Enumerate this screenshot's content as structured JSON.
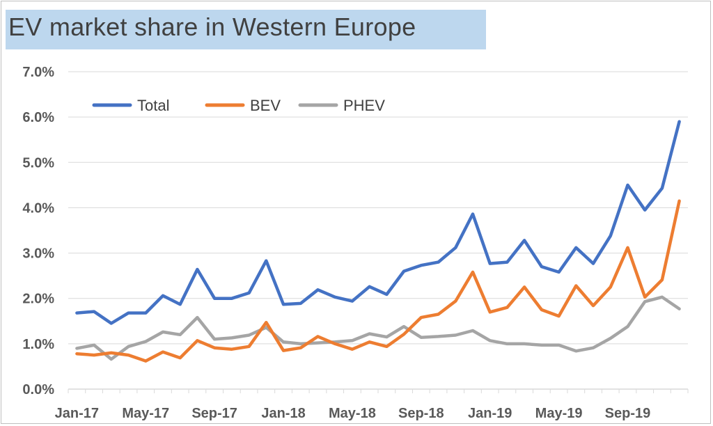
{
  "title": "EV market share in Western Europe",
  "colors": {
    "Total": "#4472c4",
    "BEV": "#ed7d31",
    "PHEV": "#a5a5a5"
  },
  "chart_data": {
    "type": "line",
    "title": "EV market share in Western Europe",
    "xlabel": "",
    "ylabel": "",
    "ylim": [
      0,
      0.07
    ],
    "y_ticks": [
      "0.0%",
      "1.0%",
      "2.0%",
      "3.0%",
      "4.0%",
      "5.0%",
      "6.0%",
      "7.0%"
    ],
    "x_ticks": [
      "Jan-17",
      "May-17",
      "Sep-17",
      "Jan-18",
      "May-18",
      "Sep-18",
      "Jan-19",
      "May-19",
      "Sep-19"
    ],
    "x": [
      "Jan-17",
      "Feb-17",
      "Mar-17",
      "Apr-17",
      "May-17",
      "Jun-17",
      "Jul-17",
      "Aug-17",
      "Sep-17",
      "Oct-17",
      "Nov-17",
      "Dec-17",
      "Jan-18",
      "Feb-18",
      "Mar-18",
      "Apr-18",
      "May-18",
      "Jun-18",
      "Jul-18",
      "Aug-18",
      "Sep-18",
      "Oct-18",
      "Nov-18",
      "Dec-18",
      "Jan-19",
      "Feb-19",
      "Mar-19",
      "Apr-19",
      "May-19",
      "Jun-19",
      "Jul-19",
      "Aug-19",
      "Sep-19",
      "Oct-19",
      "Nov-19",
      "Dec-19"
    ],
    "legend_position": "top-left",
    "grid": true,
    "series": [
      {
        "name": "Total",
        "values": [
          1.68,
          1.71,
          1.45,
          1.68,
          1.68,
          2.06,
          1.87,
          2.64,
          2.0,
          2.0,
          2.12,
          2.83,
          1.87,
          1.89,
          2.19,
          2.03,
          1.94,
          2.26,
          2.09,
          2.6,
          2.73,
          2.8,
          3.12,
          3.86,
          2.77,
          2.8,
          3.28,
          2.7,
          2.58,
          3.12,
          2.77,
          3.38,
          4.5,
          3.95,
          4.43,
          5.9
        ]
      },
      {
        "name": "BEV",
        "values": [
          0.78,
          0.75,
          0.8,
          0.75,
          0.62,
          0.82,
          0.69,
          1.07,
          0.91,
          0.88,
          0.94,
          1.47,
          0.85,
          0.91,
          1.16,
          1.0,
          0.88,
          1.04,
          0.94,
          1.21,
          1.58,
          1.65,
          1.94,
          2.58,
          1.7,
          1.8,
          2.25,
          1.75,
          1.61,
          2.28,
          1.84,
          2.25,
          3.12,
          2.03,
          2.41,
          4.15
        ]
      },
      {
        "name": "PHEV",
        "values": [
          0.9,
          0.97,
          0.66,
          0.94,
          1.05,
          1.26,
          1.2,
          1.58,
          1.1,
          1.13,
          1.19,
          1.36,
          1.04,
          1.0,
          1.02,
          1.04,
          1.07,
          1.22,
          1.15,
          1.38,
          1.14,
          1.16,
          1.19,
          1.29,
          1.07,
          1.0,
          1.0,
          0.97,
          0.97,
          0.84,
          0.91,
          1.12,
          1.38,
          1.93,
          2.03,
          1.77
        ]
      }
    ]
  }
}
